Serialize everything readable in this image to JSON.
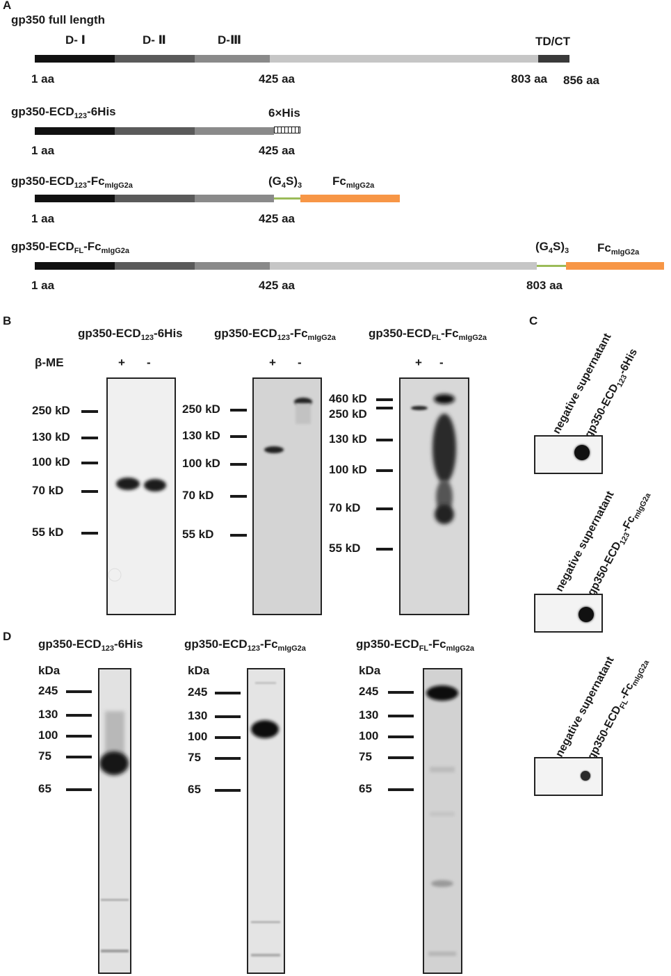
{
  "panels": {
    "A": "A",
    "B": "B",
    "C": "C",
    "D": "D"
  },
  "a": {
    "full": {
      "title": "gp350 full length",
      "d1": "D- Ⅰ",
      "d2": "D- Ⅱ",
      "d3": "D-Ⅲ",
      "tdct": "TD/CT",
      "aa1": "1 aa",
      "aa425": "425 aa",
      "aa803": "803 aa",
      "aa856": "856 aa"
    },
    "his": {
      "title_pre": "gp350-ECD",
      "title_sub": "123",
      "title_post": "-6His",
      "tag": "6×His",
      "aa1": "1 aa",
      "aa425": "425 aa"
    },
    "fc123": {
      "title_pre": "gp350-ECD",
      "title_sub": "123",
      "title_mid": "-Fc",
      "title_sub2": "mIgG2a",
      "linker_pre": "(G",
      "linker_sub": "4",
      "linker_mid": "S)",
      "linker_sub2": "3",
      "fc_pre": "Fc",
      "fc_sub": "mIgG2a",
      "aa1": "1 aa",
      "aa425": "425 aa"
    },
    "fcfl": {
      "title_pre": "gp350-ECD",
      "title_sub": "FL",
      "title_mid": "-Fc",
      "title_sub2": "mIgG2a",
      "linker_pre": "(G",
      "linker_sub": "4",
      "linker_mid": "S)",
      "linker_sub2": "3",
      "fc_pre": "Fc",
      "fc_sub": "mIgG2a",
      "aa1": "1 aa",
      "aa425": "425 aa",
      "aa803": "803 aa"
    }
  },
  "b": {
    "bme": "β-ME",
    "plus": "+",
    "minus": "-",
    "t1_pre": "gp350-ECD",
    "t1_sub": "123",
    "t1_post": "-6His",
    "t2_pre": "gp350-ECD",
    "t2_sub": "123",
    "t2_mid": "-Fc",
    "t2_sub2": "mIgG2a",
    "t3_pre": "gp350-ECD",
    "t3_sub": "FL",
    "t3_mid": "-Fc",
    "t3_sub2": "mIgG2a",
    "m1": [
      "250 kD",
      "130 kD",
      "100 kD",
      "70 kD",
      "55 kD"
    ],
    "m2": [
      "250 kD",
      "130 kD",
      "100 kD",
      "70 kD",
      "55 kD"
    ],
    "m3": [
      "460 kD",
      "250 kD",
      "130 kD",
      "100 kD",
      "70 kD",
      "55 kD"
    ]
  },
  "c": {
    "neg": "negative supernatant",
    "s1_pre": "gp350-ECD",
    "s1_sub": "123",
    "s1_post": "-6His",
    "s2_pre": "gp350-ECD",
    "s2_sub": "123",
    "s2_mid": "-Fc",
    "s2_sub2": "mIgG2a",
    "s3_pre": "gp350-ECD",
    "s3_sub": "FL",
    "s3_mid": "-Fc",
    "s3_sub2": "mIgG2a"
  },
  "d": {
    "kda": "kDa",
    "t1_pre": "gp350-ECD",
    "t1_sub": "123",
    "t1_post": "-6His",
    "t2_pre": "gp350-ECD",
    "t2_sub": "123",
    "t2_mid": "-Fc",
    "t2_sub2": "mIgG2a",
    "t3_pre": "gp350-ECD",
    "t3_sub": "FL",
    "t3_mid": "-Fc",
    "t3_sub2": "mIgG2a",
    "markers": [
      "245",
      "130",
      "100",
      "75",
      "65"
    ]
  },
  "colors": {
    "d1": "#111111",
    "d2": "#5a5a5a",
    "d3": "#8a8a8a",
    "ecd": "#c6c6c6",
    "tdct": "#3a3a3a",
    "linker": "#9bbb59",
    "fc": "#f79646"
  }
}
